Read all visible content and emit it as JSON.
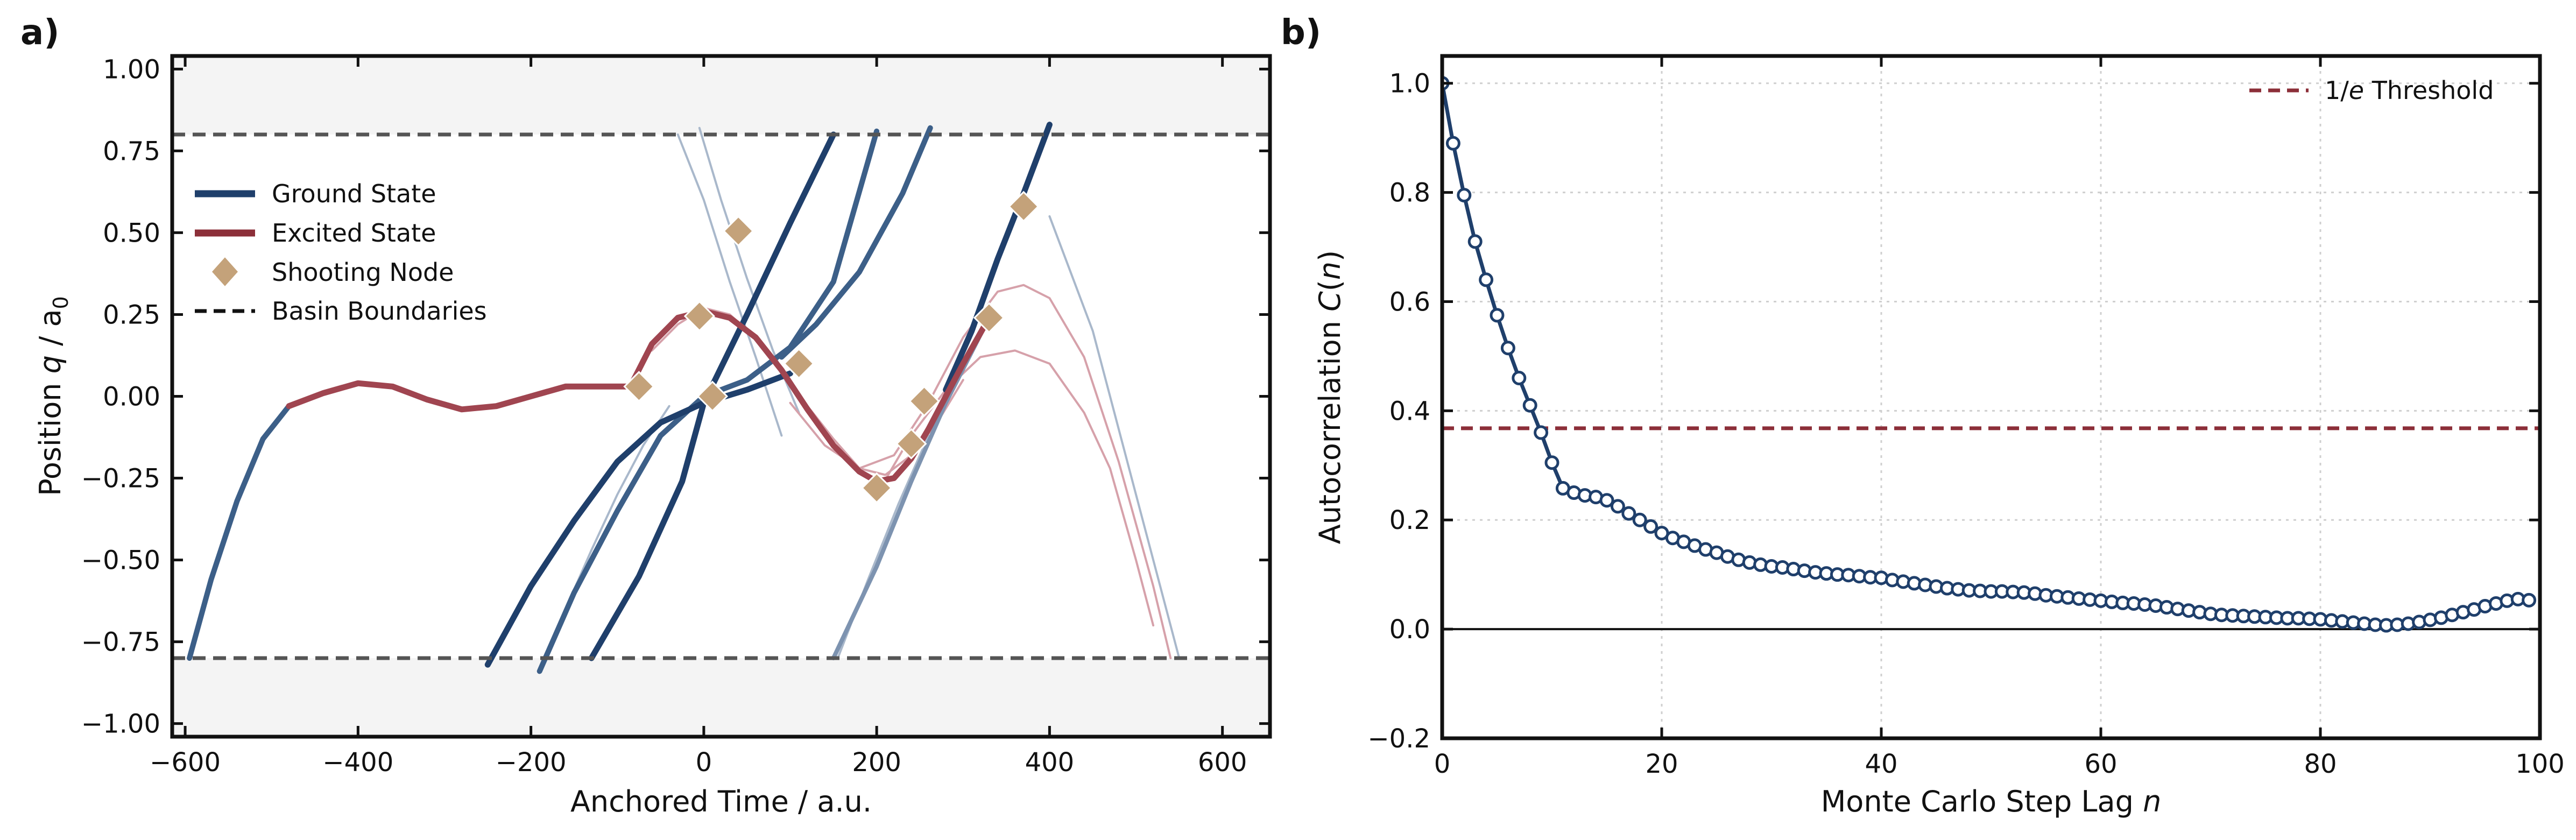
{
  "chart_data": [
    {
      "panel": "a)",
      "type": "line",
      "xlabel": "Anchored Time / a.u.",
      "ylabel_prefix": "Position ",
      "ylabel_var": "q",
      "ylabel_suffix": " / a",
      "ylabel_sub": "0",
      "xlim": [
        -615,
        655
      ],
      "ylim": [
        -1.04,
        1.04
      ],
      "xticks": [
        -600,
        -400,
        -200,
        0,
        200,
        400,
        600
      ],
      "xtick_labels": [
        "−600",
        "−400",
        "−200",
        "0",
        "200",
        "400",
        "600"
      ],
      "yticks": [
        -1.0,
        -0.75,
        -0.5,
        -0.25,
        0.0,
        0.25,
        0.5,
        0.75,
        1.0
      ],
      "ytick_labels": [
        "−1.00",
        "−0.75",
        "−0.50",
        "−0.25",
        "0.00",
        "0.25",
        "0.50",
        "0.75",
        "1.00"
      ],
      "basin_boundaries": [
        -0.8,
        0.8
      ],
      "legend": [
        {
          "label": "Ground State",
          "kind": "line",
          "color": "#1f3f6b"
        },
        {
          "label": "Excited State",
          "kind": "line",
          "color": "#8c2f39"
        },
        {
          "label": "Shooting Node",
          "kind": "diamond",
          "color": "#c4a27a"
        },
        {
          "label": "Basin Boundaries",
          "kind": "dashed",
          "color": "#111111"
        }
      ],
      "series": [
        {
          "name": "Ground trajectory 1",
          "state": "ground",
          "style": "mid",
          "x": [
            -595,
            -570,
            -540,
            -510,
            -480
          ],
          "y": [
            -0.8,
            -0.56,
            -0.32,
            -0.13,
            -0.03
          ]
        },
        {
          "name": "Ground trajectory 2",
          "state": "ground",
          "style": "main",
          "x": [
            -250,
            -200,
            -150,
            -100,
            -50,
            0,
            50,
            100
          ],
          "y": [
            -0.82,
            -0.58,
            -0.38,
            -0.2,
            -0.08,
            -0.02,
            0.02,
            0.07
          ]
        },
        {
          "name": "Ground trajectory 3",
          "state": "ground",
          "style": "main",
          "x": [
            -130,
            -75,
            -25,
            0,
            50,
            100,
            150
          ],
          "y": [
            -0.8,
            -0.55,
            -0.26,
            -0.02,
            0.25,
            0.53,
            0.8
          ]
        },
        {
          "name": "Ground trajectory 4",
          "state": "ground",
          "style": "mid",
          "x": [
            -190,
            -150,
            -100,
            -50,
            0,
            50,
            100,
            150,
            200
          ],
          "y": [
            -0.84,
            -0.6,
            -0.35,
            -0.12,
            0.0,
            0.05,
            0.15,
            0.35,
            0.81
          ]
        },
        {
          "name": "Ground trajectory 5",
          "state": "ground",
          "style": "mid",
          "x": [
            90,
            130,
            180,
            230,
            262
          ],
          "y": [
            0.12,
            0.22,
            0.38,
            0.62,
            0.82
          ]
        },
        {
          "name": "Ground trajectory 6",
          "state": "ground",
          "style": "main",
          "x": [
            280,
            310,
            340,
            370,
            400
          ],
          "y": [
            0.02,
            0.2,
            0.42,
            0.62,
            0.83
          ]
        },
        {
          "name": "Ground trajectory 7",
          "state": "ground",
          "style": "light",
          "x": [
            150,
            200,
            240,
            280,
            330
          ],
          "y": [
            -0.8,
            -0.52,
            -0.26,
            -0.02,
            0.24
          ]
        },
        {
          "name": "Ground trajectory 8",
          "state": "ground",
          "style": "faint",
          "x": [
            -30,
            0,
            30,
            60,
            90
          ],
          "y": [
            0.8,
            0.6,
            0.35,
            0.12,
            -0.12
          ]
        },
        {
          "name": "Ground trajectory 9",
          "state": "ground",
          "style": "faint",
          "x": [
            -190,
            -160,
            -130,
            -100,
            -70,
            -40
          ],
          "y": [
            -0.84,
            -0.65,
            -0.47,
            -0.3,
            -0.15,
            -0.03
          ]
        },
        {
          "name": "Ground trajectory 10",
          "state": "ground",
          "style": "faint",
          "x": [
            -5,
            20,
            50,
            80,
            110
          ],
          "y": [
            0.82,
            0.6,
            0.36,
            0.14,
            -0.05
          ]
        },
        {
          "name": "Ground trajectory 11",
          "state": "ground",
          "style": "faint",
          "x": [
            400,
            450,
            500,
            550
          ],
          "y": [
            0.55,
            0.2,
            -0.3,
            -0.8
          ]
        },
        {
          "name": "Ground trajectory 12",
          "state": "ground",
          "style": "faint",
          "x": [
            155,
            190,
            225,
            260
          ],
          "y": [
            -0.8,
            -0.56,
            -0.33,
            -0.12
          ]
        },
        {
          "name": "Excited trajectory 1",
          "state": "excited",
          "style": "main",
          "x": [
            -480,
            -440,
            -400,
            -360,
            -320,
            -280,
            -240,
            -200,
            -160,
            -120,
            -80
          ],
          "y": [
            -0.03,
            0.01,
            0.04,
            0.03,
            -0.01,
            -0.04,
            -0.03,
            0.0,
            0.03,
            0.03,
            0.03
          ]
        },
        {
          "name": "Excited trajectory 2",
          "state": "excited",
          "style": "main",
          "x": [
            -85,
            -60,
            -30,
            0,
            30,
            60,
            90,
            120,
            150,
            180,
            200,
            220,
            240,
            260,
            280,
            300,
            330
          ],
          "y": [
            0.03,
            0.16,
            0.24,
            0.26,
            0.24,
            0.18,
            0.08,
            -0.04,
            -0.15,
            -0.23,
            -0.26,
            -0.25,
            -0.19,
            -0.1,
            0.0,
            0.1,
            0.24
          ]
        },
        {
          "name": "Excited trajectory 3",
          "state": "excited",
          "style": "faint",
          "x": [
            -60,
            -30,
            0,
            30,
            60,
            90,
            120,
            150,
            180,
            210,
            240,
            270,
            300
          ],
          "y": [
            0.14,
            0.22,
            0.27,
            0.25,
            0.18,
            0.08,
            -0.03,
            -0.13,
            -0.22,
            -0.24,
            -0.18,
            -0.08,
            0.05
          ]
        },
        {
          "name": "Excited trajectory 4",
          "state": "excited",
          "style": "faint",
          "x": [
            100,
            140,
            180,
            220,
            260,
            300,
            340,
            370,
            400,
            440,
            480,
            520,
            540
          ],
          "y": [
            -0.02,
            -0.15,
            -0.22,
            -0.18,
            -0.02,
            0.18,
            0.32,
            0.34,
            0.3,
            0.12,
            -0.2,
            -0.58,
            -0.8
          ]
        },
        {
          "name": "Excited trajectory 5",
          "state": "excited",
          "style": "faint",
          "x": [
            200,
            240,
            280,
            320,
            360,
            400,
            440,
            470,
            500,
            520
          ],
          "y": [
            -0.3,
            -0.12,
            0.02,
            0.12,
            0.14,
            0.1,
            -0.05,
            -0.22,
            -0.5,
            -0.7
          ]
        }
      ],
      "nodes": {
        "x": [
          -75,
          -5,
          10,
          40,
          110,
          200,
          240,
          255,
          330,
          370
        ],
        "y": [
          0.03,
          0.245,
          0.0,
          0.505,
          0.1,
          -0.28,
          -0.145,
          -0.015,
          0.24,
          0.58
        ]
      }
    },
    {
      "panel": "b)",
      "type": "line",
      "xlabel_prefix": "Monte Carlo Step Lag ",
      "xlabel_var": "n",
      "ylabel_prefix": "Autocorrelation ",
      "ylabel_func": "C",
      "ylabel_open": "(",
      "ylabel_var": "n",
      "ylabel_close": ")",
      "xlim": [
        0,
        100
      ],
      "ylim": [
        -0.2,
        1.05
      ],
      "xticks": [
        0,
        20,
        40,
        60,
        80,
        100
      ],
      "xtick_labels": [
        "0",
        "20",
        "40",
        "60",
        "80",
        "100"
      ],
      "yticks": [
        -0.2,
        0.0,
        0.2,
        0.4,
        0.6,
        0.8,
        1.0
      ],
      "ytick_labels": [
        "−0.2",
        "0.0",
        "0.2",
        "0.4",
        "0.6",
        "0.8",
        "1.0"
      ],
      "grid": true,
      "threshold": 0.368,
      "legend": [
        {
          "prefix": "1/",
          "var": "e",
          "suffix": " Threshold",
          "kind": "dashed",
          "color": "#8c2f39"
        }
      ],
      "series": [
        {
          "name": "C(n)",
          "x": [
            0,
            1,
            2,
            3,
            4,
            5,
            6,
            7,
            8,
            9,
            10,
            11,
            12,
            13,
            14,
            15,
            16,
            17,
            18,
            19,
            20,
            21,
            22,
            23,
            24,
            25,
            26,
            27,
            28,
            29,
            30,
            31,
            32,
            33,
            34,
            35,
            36,
            37,
            38,
            39,
            40,
            41,
            42,
            43,
            44,
            45,
            46,
            47,
            48,
            49,
            50,
            51,
            52,
            53,
            54,
            55,
            56,
            57,
            58,
            59,
            60,
            61,
            62,
            63,
            64,
            65,
            66,
            67,
            68,
            69,
            70,
            71,
            72,
            73,
            74,
            75,
            76,
            77,
            78,
            79,
            80,
            81,
            82,
            83,
            84,
            85,
            86,
            87,
            88,
            89,
            90,
            91,
            92,
            93,
            94,
            95,
            96,
            97,
            98,
            99
          ],
          "y": [
            1.0,
            0.89,
            0.795,
            0.71,
            0.64,
            0.575,
            0.515,
            0.46,
            0.41,
            0.36,
            0.305,
            0.258,
            0.25,
            0.245,
            0.242,
            0.236,
            0.225,
            0.212,
            0.2,
            0.188,
            0.176,
            0.167,
            0.16,
            0.153,
            0.146,
            0.14,
            0.133,
            0.127,
            0.122,
            0.118,
            0.115,
            0.113,
            0.11,
            0.107,
            0.104,
            0.102,
            0.1,
            0.099,
            0.097,
            0.095,
            0.094,
            0.09,
            0.087,
            0.084,
            0.081,
            0.078,
            0.075,
            0.073,
            0.071,
            0.07,
            0.069,
            0.069,
            0.068,
            0.067,
            0.065,
            0.062,
            0.06,
            0.058,
            0.056,
            0.054,
            0.052,
            0.05,
            0.048,
            0.047,
            0.045,
            0.043,
            0.04,
            0.037,
            0.034,
            0.031,
            0.028,
            0.026,
            0.025,
            0.024,
            0.023,
            0.022,
            0.021,
            0.02,
            0.02,
            0.019,
            0.018,
            0.016,
            0.014,
            0.012,
            0.01,
            0.008,
            0.007,
            0.008,
            0.01,
            0.013,
            0.017,
            0.021,
            0.026,
            0.031,
            0.036,
            0.042,
            0.047,
            0.052,
            0.055,
            0.053
          ]
        }
      ]
    }
  ]
}
